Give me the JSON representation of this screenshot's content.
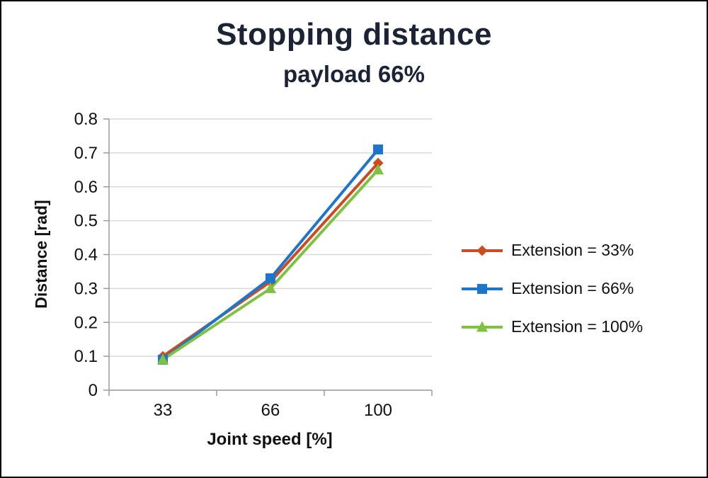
{
  "chart_data": {
    "type": "line",
    "title": "Stopping distance",
    "subtitle": "payload 66%",
    "xlabel": "Joint speed [%]",
    "ylabel": "Distance [rad]",
    "categories": [
      "33",
      "66",
      "100"
    ],
    "ylim": [
      0,
      0.8
    ],
    "ytick_step": 0.1,
    "yticks": [
      "0",
      "0.1",
      "0.2",
      "0.3",
      "0.4",
      "0.5",
      "0.6",
      "0.7",
      "0.8"
    ],
    "grid": true,
    "legend_position": "right",
    "colors": {
      "gridline": "#D9D9D9",
      "axis": "#9B9B9B",
      "text": "#111111"
    },
    "series": [
      {
        "name": "Extension = 33%",
        "marker": "diamond",
        "color": "#CC4B22",
        "values": [
          0.1,
          0.32,
          0.67
        ]
      },
      {
        "name": "Extension = 66%",
        "marker": "square",
        "color": "#1D76CC",
        "values": [
          0.09,
          0.33,
          0.71
        ]
      },
      {
        "name": "Extension = 100%",
        "marker": "triangle",
        "color": "#7FC241",
        "values": [
          0.09,
          0.3,
          0.65
        ]
      }
    ]
  }
}
